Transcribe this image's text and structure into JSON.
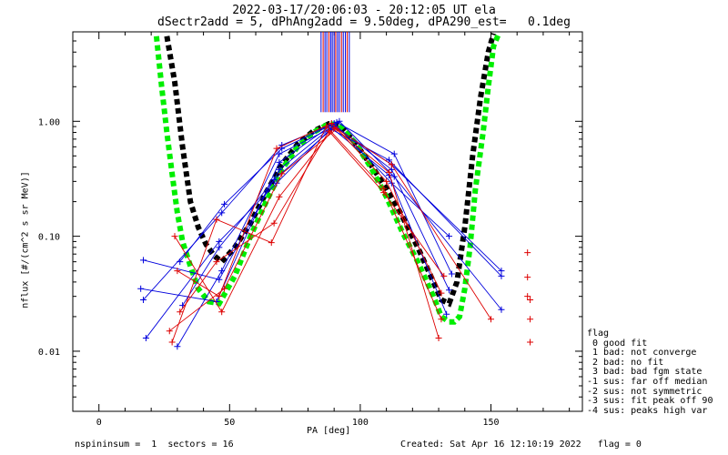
{
  "title_line1": "2022-03-17/20:06:03 - 20:12:05 UT ela",
  "title_line2": "dSectr2add = 5, dPhAng2add = 9.50deg, dPA290_est=   0.1deg",
  "footer_left": "nspininsum =  1  sectors = 16",
  "footer_right": "Created: Sat Apr 16 12:10:19 2022   flag = 0",
  "legend": {
    "title": "flag",
    "items": [
      " 0 good fit",
      " 1 bad: not converge",
      " 2 bad: no fit",
      " 3 bad: bad fgm state",
      "-1 sus: far off median",
      "-2 sus: not symmetric",
      "-3 sus: fit peak off 90",
      "-4 sus: peaks high var"
    ]
  },
  "chart_data": {
    "type": "line",
    "xlabel": "PA [deg]",
    "ylabel": "nflux [#/(cm^2 s sr MeV)]",
    "xlim": [
      -10,
      185
    ],
    "ylim": [
      0.003,
      6.0
    ],
    "yscale": "log",
    "xticks": [
      0,
      50,
      100,
      150
    ],
    "xtick_labels": [
      "0",
      "50",
      "100",
      "150"
    ],
    "yticks": [
      0.01,
      0.1,
      1.0
    ],
    "ytick_labels": [
      "0.01",
      "0.10",
      "1.00"
    ],
    "grid": false,
    "colors": {
      "blue": "#0000dd",
      "red": "#dd0000",
      "black": "#000000",
      "green": "#00ee00"
    },
    "series": [
      {
        "color": "#000000",
        "style": "dashed-thick",
        "x": [
          26,
          29,
          32,
          35,
          38,
          41,
          44,
          47,
          52,
          58,
          64,
          70,
          76,
          82,
          88,
          92,
          98,
          104,
          110,
          116,
          122,
          128,
          131,
          134,
          137,
          140,
          143,
          146,
          149,
          151
        ],
        "y": [
          5.5,
          2.2,
          0.6,
          0.2,
          0.12,
          0.085,
          0.068,
          0.06,
          0.08,
          0.13,
          0.24,
          0.42,
          0.63,
          0.82,
          0.95,
          0.93,
          0.65,
          0.42,
          0.26,
          0.15,
          0.08,
          0.04,
          0.028,
          0.026,
          0.04,
          0.12,
          0.5,
          1.6,
          4.0,
          5.8
        ]
      },
      {
        "color": "#00ee00",
        "style": "dashed-thick",
        "x": [
          22,
          24,
          26,
          28,
          30,
          32,
          35,
          38,
          42,
          46,
          52,
          58,
          64,
          70,
          76,
          82,
          88,
          92,
          98,
          104,
          110,
          116,
          122,
          128,
          131,
          134,
          136,
          138,
          140,
          142,
          144,
          147,
          149,
          151,
          153
        ],
        "y": [
          5.5,
          2.0,
          0.8,
          0.35,
          0.16,
          0.09,
          0.055,
          0.035,
          0.027,
          0.026,
          0.045,
          0.1,
          0.2,
          0.38,
          0.6,
          0.8,
          0.95,
          0.93,
          0.65,
          0.4,
          0.22,
          0.11,
          0.06,
          0.03,
          0.02,
          0.018,
          0.018,
          0.02,
          0.035,
          0.08,
          0.25,
          0.8,
          2.0,
          4.5,
          5.8
        ]
      },
      {
        "color": "#0000dd",
        "style": "line-plus",
        "x": [
          17,
          46,
          69,
          90,
          112,
          134
        ],
        "y": [
          0.062,
          0.042,
          0.38,
          0.93,
          0.38,
          0.034
        ]
      },
      {
        "color": "#0000dd",
        "style": "line-plus",
        "x": [
          17,
          47,
          70,
          91,
          113,
          135
        ],
        "y": [
          0.028,
          0.16,
          0.62,
          0.98,
          0.52,
          0.047
        ]
      },
      {
        "color": "#0000dd",
        "style": "line-plus",
        "x": [
          18,
          46,
          68,
          89,
          111,
          133
        ],
        "y": [
          0.013,
          0.09,
          0.29,
          0.88,
          0.34,
          0.021
        ]
      },
      {
        "color": "#0000dd",
        "style": "line-plus",
        "x": [
          16,
          45,
          69,
          90,
          112,
          134
        ],
        "y": [
          0.035,
          0.027,
          0.44,
          0.96,
          0.29,
          0.1
        ]
      },
      {
        "color": "#0000dd",
        "style": "line-plus",
        "x": [
          30,
          47,
          69,
          90,
          112,
          154
        ],
        "y": [
          0.011,
          0.05,
          0.52,
          0.9,
          0.42,
          0.05
        ]
      },
      {
        "color": "#0000dd",
        "style": "line-plus",
        "x": [
          31,
          48,
          70,
          92,
          113,
          154
        ],
        "y": [
          0.06,
          0.19,
          0.58,
          1.0,
          0.33,
          0.023
        ]
      },
      {
        "color": "#0000dd",
        "style": "line-plus",
        "x": [
          32,
          46,
          67,
          89,
          111,
          154
        ],
        "y": [
          0.025,
          0.08,
          0.31,
          0.85,
          0.46,
          0.045
        ]
      },
      {
        "color": "#dd0000",
        "style": "line-plus",
        "x": [
          28,
          45,
          66,
          87,
          109,
          131
        ],
        "y": [
          0.012,
          0.14,
          0.088,
          0.9,
          0.26,
          0.019
        ]
      },
      {
        "color": "#dd0000",
        "style": "line-plus",
        "x": [
          30,
          46,
          68,
          89,
          110,
          131
        ],
        "y": [
          0.05,
          0.03,
          0.58,
          0.96,
          0.3,
          0.032
        ]
      },
      {
        "color": "#dd0000",
        "style": "line-plus",
        "x": [
          29,
          47,
          69,
          90,
          111,
          130
        ],
        "y": [
          0.1,
          0.022,
          0.22,
          0.88,
          0.36,
          0.013
        ]
      },
      {
        "color": "#dd0000",
        "style": "line-plus",
        "x": [
          31,
          45,
          67,
          88,
          109,
          132
        ],
        "y": [
          0.022,
          0.06,
          0.13,
          0.82,
          0.24,
          0.045
        ]
      },
      {
        "color": "#dd0000",
        "style": "line-plus",
        "x": [
          27,
          48,
          70,
          91,
          112,
          150
        ],
        "y": [
          0.015,
          0.035,
          0.35,
          0.86,
          0.42,
          0.019
        ]
      },
      {
        "color": "#dd0000",
        "style": "markers-only",
        "x": [
          164,
          164,
          164,
          165,
          165,
          165
        ],
        "y": [
          0.072,
          0.044,
          0.03,
          0.028,
          0.019,
          0.012
        ]
      }
    ],
    "top_ticks": [
      {
        "x": 85.0,
        "color": "#0000dd"
      },
      {
        "x": 85.8,
        "color": "#dd0000"
      },
      {
        "x": 86.5,
        "color": "#0000dd"
      },
      {
        "x": 87.2,
        "color": "#0000dd"
      },
      {
        "x": 88.0,
        "color": "#dd0000"
      },
      {
        "x": 88.7,
        "color": "#0000dd"
      },
      {
        "x": 89.3,
        "color": "#0000dd"
      },
      {
        "x": 90.0,
        "color": "#0000dd"
      },
      {
        "x": 90.6,
        "color": "#dd0000"
      },
      {
        "x": 91.3,
        "color": "#0000dd"
      },
      {
        "x": 92.0,
        "color": "#0000dd"
      },
      {
        "x": 92.8,
        "color": "#dd0000"
      },
      {
        "x": 93.5,
        "color": "#0000dd"
      },
      {
        "x": 94.3,
        "color": "#0000dd"
      },
      {
        "x": 95.0,
        "color": "#dd0000"
      },
      {
        "x": 95.8,
        "color": "#0000dd"
      }
    ]
  }
}
